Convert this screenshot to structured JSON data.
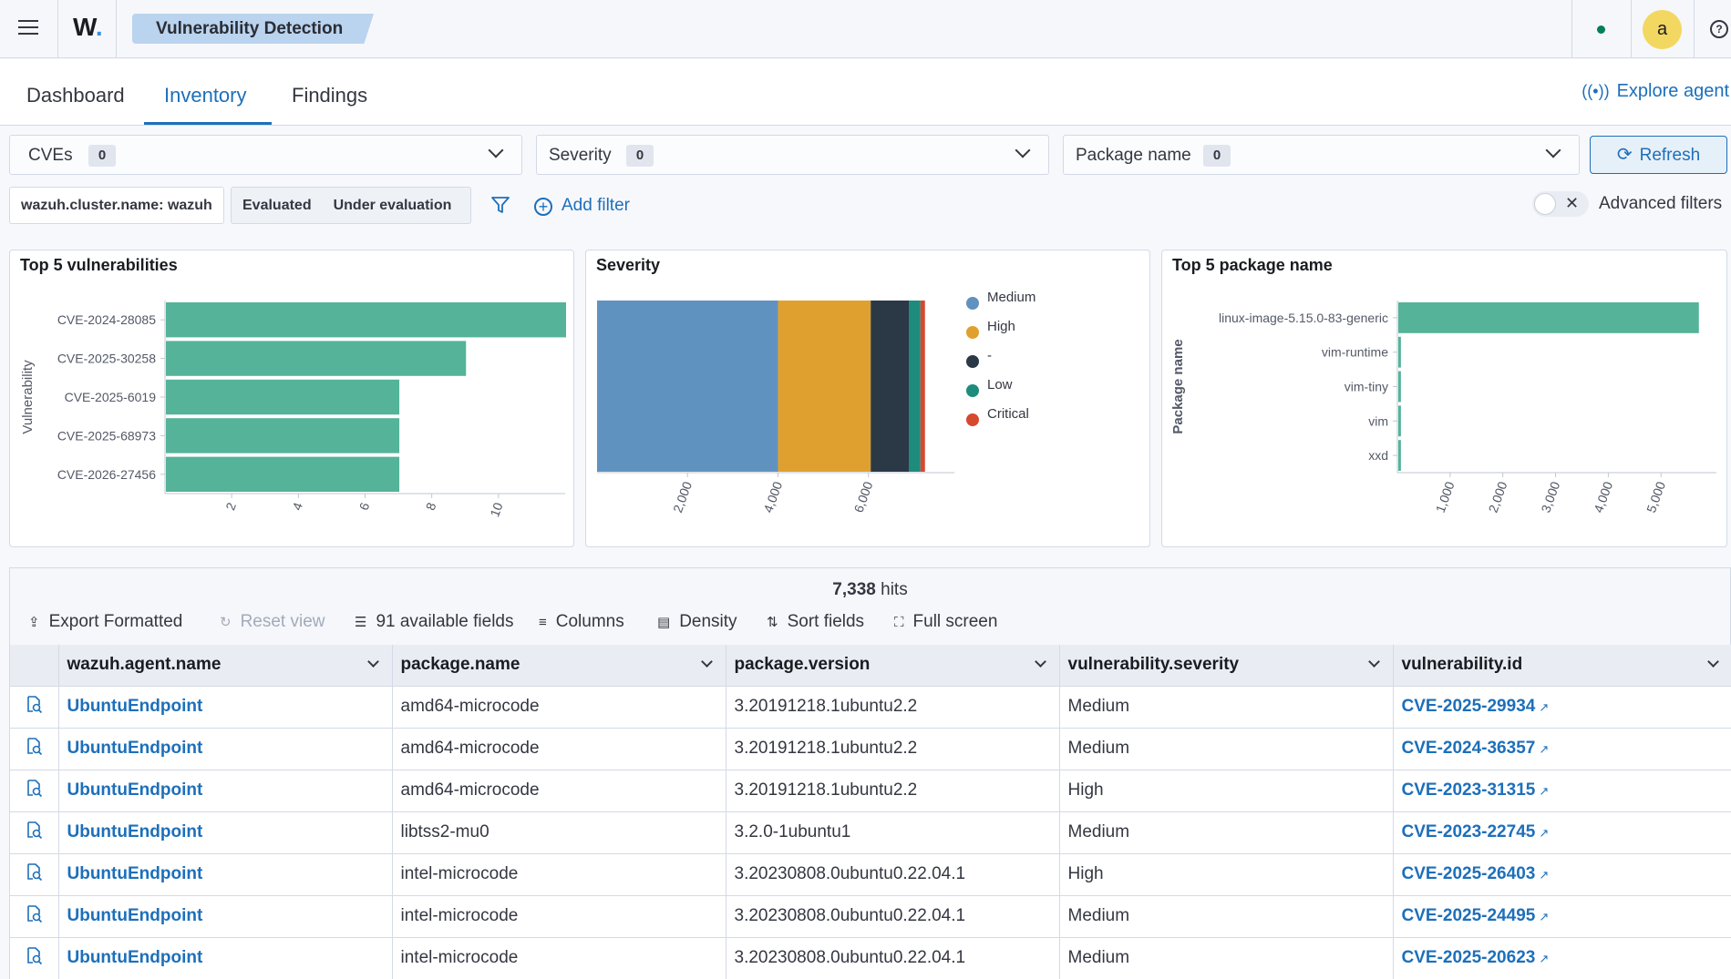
{
  "header": {
    "logo": "W",
    "breadcrumb": "Vulnerability Detection",
    "avatar_letter": "a",
    "help": "?"
  },
  "tabs": [
    {
      "label": "Dashboard"
    },
    {
      "label": "Inventory"
    },
    {
      "label": "Findings"
    }
  ],
  "explore_agent": "Explore agent",
  "filters": {
    "cves": {
      "label": "CVEs",
      "count": "0"
    },
    "severity": {
      "label": "Severity",
      "count": "0"
    },
    "package": {
      "label": "Package name",
      "count": "0"
    },
    "refresh": "Refresh",
    "cluster_pill": "wazuh.cluster.name: wazuh",
    "evaluated": "Evaluated",
    "under_evaluation": "Under evaluation",
    "add_filter": "Add filter",
    "advanced": "Advanced filters"
  },
  "panels": {
    "top5_vuln_title": "Top 5 vulnerabilities",
    "severity_title": "Severity",
    "top5_pkg_title": "Top 5 package name"
  },
  "chart_data": [
    {
      "type": "bar",
      "orientation": "horizontal",
      "title": "Top 5 vulnerabilities",
      "ylabel": "Vulnerability",
      "categories": [
        "CVE-2024-28085",
        "CVE-2025-30258",
        "CVE-2025-6019",
        "CVE-2025-68973",
        "CVE-2026-27456"
      ],
      "values": [
        12,
        9,
        7,
        7,
        7
      ],
      "xticks": [
        2,
        4,
        6,
        8,
        10
      ],
      "xlim": [
        0,
        12
      ],
      "color": "#54b399"
    },
    {
      "type": "bar",
      "orientation": "horizontal-stacked",
      "title": "Severity",
      "series": [
        {
          "name": "Medium",
          "value": 4000,
          "color": "#6092c0"
        },
        {
          "name": "High",
          "value": 2050,
          "color": "#e0a02f"
        },
        {
          "name": "-",
          "value": 850,
          "color": "#2b3846"
        },
        {
          "name": "Low",
          "value": 250,
          "color": "#1e8c7c"
        },
        {
          "name": "Critical",
          "value": 100,
          "color": "#d6492f"
        }
      ],
      "xticks": [
        "2,000",
        "4,000",
        "6,000"
      ],
      "xlim": [
        0,
        7900
      ],
      "legend": "right"
    },
    {
      "type": "bar",
      "orientation": "horizontal",
      "title": "Top 5 package name",
      "ylabel": "Package name",
      "categories": [
        "linux-image-5.15.0-83-generic",
        "vim-runtime",
        "vim-tiny",
        "vim",
        "xxd"
      ],
      "values": [
        5700,
        50,
        50,
        50,
        50
      ],
      "xticks": [
        "1,000",
        "2,000",
        "3,000",
        "4,000",
        "5,000"
      ],
      "xlim": [
        0,
        6050
      ],
      "color": "#54b399"
    }
  ],
  "grid": {
    "hits": "7,338",
    "hits_label": "hits",
    "toolbar": {
      "export": "Export Formatted",
      "reset": "Reset view",
      "fields": "91 available fields",
      "columns": "Columns",
      "density": "Density",
      "sort": "Sort fields",
      "fullscreen": "Full screen"
    },
    "columns": [
      "wazuh.agent.name",
      "package.name",
      "package.version",
      "vulnerability.severity",
      "vulnerability.id"
    ],
    "rows": [
      [
        "UbuntuEndpoint",
        "amd64-microcode",
        "3.20191218.1ubuntu2.2",
        "Medium",
        "CVE-2025-29934"
      ],
      [
        "UbuntuEndpoint",
        "amd64-microcode",
        "3.20191218.1ubuntu2.2",
        "Medium",
        "CVE-2024-36357"
      ],
      [
        "UbuntuEndpoint",
        "amd64-microcode",
        "3.20191218.1ubuntu2.2",
        "High",
        "CVE-2023-31315"
      ],
      [
        "UbuntuEndpoint",
        "libtss2-mu0",
        "3.2.0-1ubuntu1",
        "Medium",
        "CVE-2023-22745"
      ],
      [
        "UbuntuEndpoint",
        "intel-microcode",
        "3.20230808.0ubuntu0.22.04.1",
        "High",
        "CVE-2025-26403"
      ],
      [
        "UbuntuEndpoint",
        "intel-microcode",
        "3.20230808.0ubuntu0.22.04.1",
        "Medium",
        "CVE-2025-24495"
      ],
      [
        "UbuntuEndpoint",
        "intel-microcode",
        "3.20230808.0ubuntu0.22.04.1",
        "Medium",
        "CVE-2025-20623"
      ]
    ]
  }
}
